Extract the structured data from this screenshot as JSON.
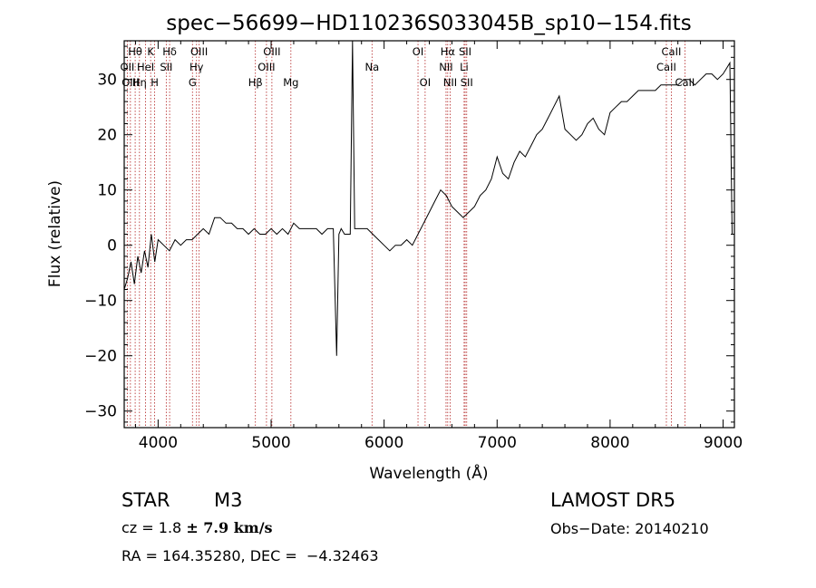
{
  "chart_data": {
    "type": "line",
    "title": "spec−56699−HD110236S033045B_sp10−154.fits",
    "xlabel": "Wavelength (Å)",
    "ylabel": "Flux (relative)",
    "xlim": [
      3700,
      9100
    ],
    "ylim": [
      -33,
      37
    ],
    "xticks": [
      4000,
      5000,
      6000,
      7000,
      8000,
      9000
    ],
    "yticks": [
      -30,
      -20,
      -10,
      0,
      10,
      20,
      30
    ],
    "ytick_labels": [
      "−30",
      "−20",
      "−10",
      "0",
      "10",
      "20",
      "30"
    ],
    "grid": false,
    "series": [
      {
        "color": "#000000",
        "x": [
          3700,
          3730,
          3760,
          3790,
          3820,
          3850,
          3880,
          3910,
          3940,
          3970,
          4000,
          4050,
          4100,
          4150,
          4200,
          4250,
          4300,
          4350,
          4400,
          4450,
          4500,
          4550,
          4600,
          4650,
          4700,
          4750,
          4800,
          4850,
          4900,
          4950,
          5000,
          5050,
          5100,
          5150,
          5200,
          5250,
          5300,
          5350,
          5400,
          5450,
          5500,
          5550,
          5580,
          5600,
          5620,
          5650,
          5700,
          5720,
          5740,
          5760,
          5800,
          5850,
          5900,
          5950,
          6000,
          6050,
          6100,
          6150,
          6200,
          6250,
          6300,
          6350,
          6400,
          6450,
          6500,
          6550,
          6600,
          6650,
          6700,
          6750,
          6800,
          6850,
          6900,
          6950,
          7000,
          7050,
          7100,
          7150,
          7200,
          7250,
          7300,
          7350,
          7400,
          7450,
          7500,
          7550,
          7600,
          7650,
          7700,
          7750,
          7800,
          7850,
          7900,
          7950,
          8000,
          8050,
          8100,
          8150,
          8200,
          8250,
          8300,
          8350,
          8400,
          8450,
          8500,
          8550,
          8600,
          8650,
          8700,
          8750,
          8800,
          8850,
          8900,
          8950,
          9000,
          9030,
          9060,
          9080
        ],
        "y": [
          -8,
          -6,
          -3,
          -7,
          -2,
          -5,
          -1,
          -4,
          2,
          -3,
          1,
          0,
          -1,
          1,
          0,
          1,
          1,
          2,
          3,
          2,
          5,
          5,
          4,
          4,
          3,
          3,
          2,
          3,
          2,
          2,
          3,
          2,
          3,
          2,
          4,
          3,
          3,
          3,
          3,
          2,
          3,
          3,
          -20,
          2,
          3,
          2,
          2,
          37,
          3,
          3,
          3,
          3,
          2,
          1,
          0,
          -1,
          0,
          0,
          1,
          0,
          2,
          4,
          6,
          8,
          10,
          9,
          7,
          6,
          5,
          6,
          7,
          9,
          10,
          12,
          16,
          13,
          12,
          15,
          17,
          16,
          18,
          20,
          21,
          23,
          25,
          27,
          21,
          20,
          19,
          20,
          22,
          23,
          21,
          20,
          24,
          25,
          26,
          26,
          27,
          28,
          28,
          28,
          28,
          29,
          29,
          29,
          29,
          30,
          30,
          29,
          30,
          31,
          31,
          30,
          31,
          32,
          33,
          2
        ]
      }
    ],
    "line_markers": [
      {
        "label": "Hθ",
        "wl": 3797,
        "row": 0
      },
      {
        "label": "K",
        "wl": 3934,
        "row": 0
      },
      {
        "label": "Hδ",
        "wl": 4102,
        "row": 0
      },
      {
        "label": "OIII",
        "wl": 4363,
        "row": 0
      },
      {
        "label": "OIII",
        "wl": 5007,
        "row": 0
      },
      {
        "label": "OI",
        "wl": 6300,
        "row": 0
      },
      {
        "label": "Hα",
        "wl": 6563,
        "row": 0
      },
      {
        "label": "SII",
        "wl": 6717,
        "row": 0
      },
      {
        "label": "CaII",
        "wl": 8542,
        "row": 0
      },
      {
        "label": "OII",
        "wl": 3727,
        "row": 1
      },
      {
        "label": "HeI",
        "wl": 3889,
        "row": 1
      },
      {
        "label": "SII",
        "wl": 4072,
        "row": 1
      },
      {
        "label": "Hγ",
        "wl": 4340,
        "row": 1
      },
      {
        "label": "OIII",
        "wl": 4959,
        "row": 1
      },
      {
        "label": "Na",
        "wl": 5893,
        "row": 1
      },
      {
        "label": "NII",
        "wl": 6548,
        "row": 1
      },
      {
        "label": "Li",
        "wl": 6708,
        "row": 1
      },
      {
        "label": "CaII",
        "wl": 8498,
        "row": 1
      },
      {
        "label": "OIII",
        "wl": 3755,
        "row": 2
      },
      {
        "label": "Hη",
        "wl": 3835,
        "row": 2
      },
      {
        "label": "H",
        "wl": 3969,
        "row": 2
      },
      {
        "label": "G",
        "wl": 4304,
        "row": 2
      },
      {
        "label": "Hβ",
        "wl": 4861,
        "row": 2
      },
      {
        "label": "Mg",
        "wl": 5175,
        "row": 2
      },
      {
        "label": "OI",
        "wl": 6363,
        "row": 2
      },
      {
        "label": "NII",
        "wl": 6584,
        "row": 2
      },
      {
        "label": "SII",
        "wl": 6731,
        "row": 2
      },
      {
        "label": "CaII",
        "wl": 8662,
        "row": 2
      }
    ]
  },
  "info": {
    "object_type": "STAR",
    "object_class": "M3",
    "survey": "LAMOST DR5",
    "cz_prefix": "cz = 1.8 ",
    "cz_error": "± 7.9 km/s",
    "obs_date": "Obs−Date: 20140210",
    "radec": "RA = 164.35280, DEC =  −4.32463"
  }
}
